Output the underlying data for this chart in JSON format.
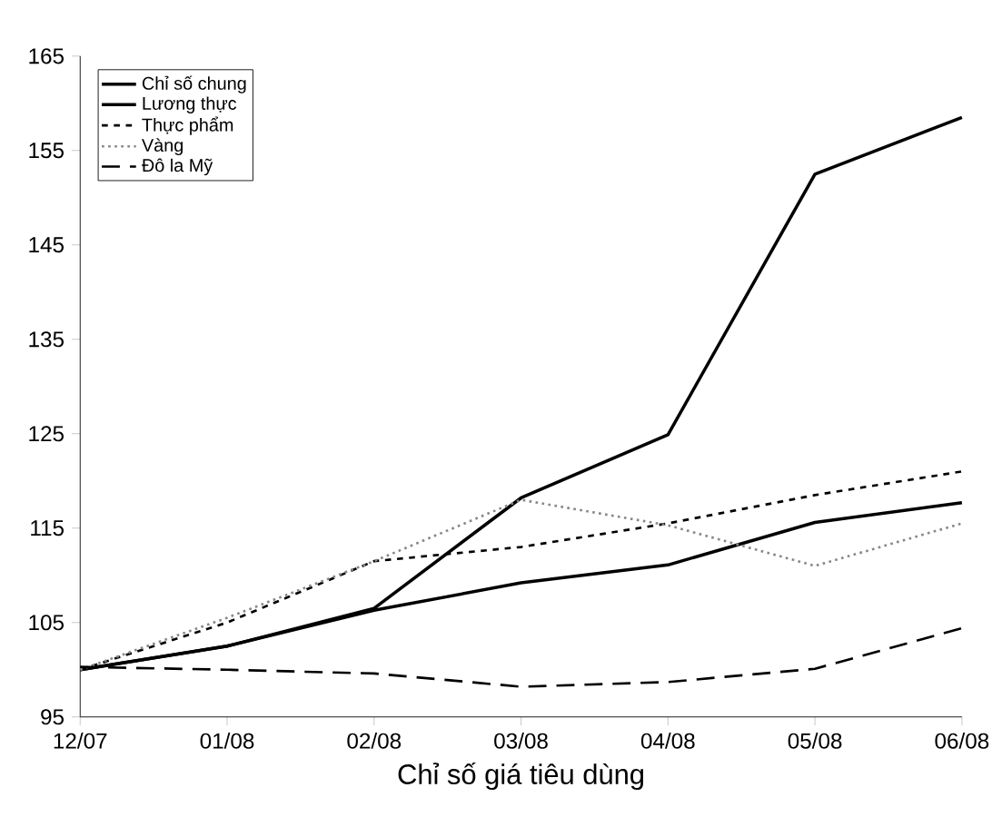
{
  "chart_data": {
    "type": "line",
    "xlabel": "Chỉ số giá tiêu dùng",
    "categories": [
      "12/07",
      "01/08",
      "02/08",
      "03/08",
      "04/08",
      "05/08",
      "06/08"
    ],
    "series": [
      {
        "name": "Chỉ số chung",
        "color": "#000000",
        "line_style": "solid",
        "values": [
          100,
          102.5,
          106.3,
          109.2,
          111.1,
          115.6,
          117.7
        ]
      },
      {
        "name": "Lương thực",
        "color": "#000000",
        "line_style": "solid",
        "values": [
          100,
          102.5,
          106.5,
          118.2,
          124.9,
          152.5,
          158.5
        ]
      },
      {
        "name": "Thực phẩm",
        "color": "#000000",
        "line_style": "dashed",
        "values": [
          100,
          105,
          111.5,
          113,
          115.5,
          118.5,
          121
        ]
      },
      {
        "name": "Vàng",
        "color": "#888888",
        "line_style": "dotted",
        "values": [
          100,
          105.5,
          111.5,
          118,
          115.3,
          111,
          115.5
        ]
      },
      {
        "name": "Đô la Mỹ",
        "color": "#000000",
        "line_style": "dashed",
        "values": [
          100.3,
          100,
          99.6,
          98.2,
          98.7,
          100.1,
          104.4
        ]
      }
    ],
    "ylim": [
      95,
      165
    ],
    "yticks": [
      95,
      105,
      115,
      125,
      135,
      145,
      155,
      165
    ],
    "grid": false,
    "legend": "top left",
    "marker": "none"
  }
}
